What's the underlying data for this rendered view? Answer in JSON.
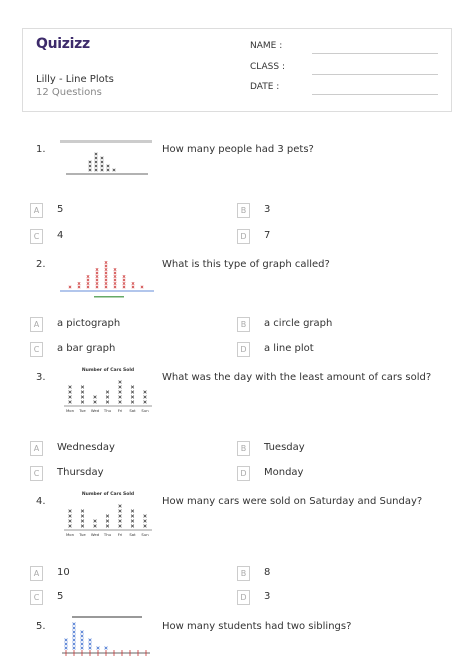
{
  "header": {
    "logo": "Quizizz",
    "title": "Lilly - Line Plots",
    "subtitle": "12 Questions",
    "fields": [
      "NAME :",
      "CLASS :",
      "DATE :"
    ]
  },
  "questions": [
    {
      "number": "1.",
      "text": "How many people had 3 pets?",
      "options": [
        {
          "letter": "A",
          "text": "5"
        },
        {
          "letter": "B",
          "text": "3"
        },
        {
          "letter": "C",
          "text": "4"
        },
        {
          "letter": "D",
          "text": "7"
        }
      ]
    },
    {
      "number": "2.",
      "text": "What is this type of graph called?",
      "options": [
        {
          "letter": "A",
          "text": "a pictograph"
        },
        {
          "letter": "B",
          "text": "a circle graph"
        },
        {
          "letter": "C",
          "text": "a bar graph"
        },
        {
          "letter": "D",
          "text": "a line plot"
        }
      ]
    },
    {
      "number": "3.",
      "text": "What was the day with the least amount of cars sold?",
      "image": {
        "title": "Number of Cars Sold",
        "labels": [
          "Mon",
          "Tue",
          "Wed",
          "Thu",
          "Fri",
          "Sat",
          "Sun"
        ]
      },
      "options": [
        {
          "letter": "A",
          "text": "Wednesday"
        },
        {
          "letter": "B",
          "text": "Tuesday"
        },
        {
          "letter": "C",
          "text": "Thursday"
        },
        {
          "letter": "D",
          "text": "Monday"
        }
      ]
    },
    {
      "number": "4.",
      "text": "How many cars were sold on Saturday and Sunday?",
      "image": {
        "title": "Number of Cars Sold",
        "labels": [
          "Mon",
          "Tue",
          "Wed",
          "Thu",
          "Fri",
          "Sat",
          "Sun"
        ]
      },
      "options": [
        {
          "letter": "A",
          "text": "10"
        },
        {
          "letter": "B",
          "text": "8"
        },
        {
          "letter": "C",
          "text": "5"
        },
        {
          "letter": "D",
          "text": "3"
        }
      ]
    },
    {
      "number": "5.",
      "text": "How many students had two siblings?"
    }
  ]
}
